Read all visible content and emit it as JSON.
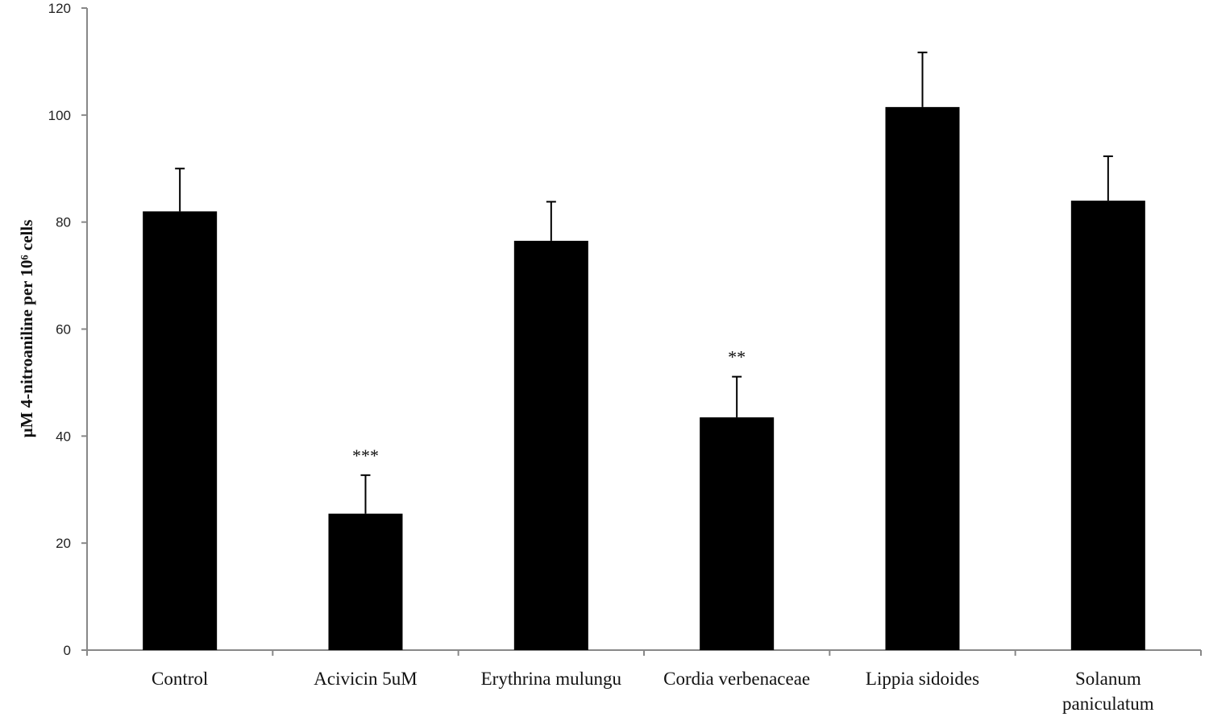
{
  "chart_data": {
    "type": "bar",
    "categories": [
      [
        "Control"
      ],
      [
        "Acivicin  5uM"
      ],
      [
        "Erythrina mulungu"
      ],
      [
        "Cordia verbenaceae"
      ],
      [
        "Lippia sidoides"
      ],
      [
        "Solanum",
        "paniculatum"
      ]
    ],
    "values": [
      82,
      25.5,
      76.5,
      43.5,
      101.5,
      84
    ],
    "errors": [
      8,
      7.2,
      7.3,
      7.6,
      10.2,
      8.3
    ],
    "significance": [
      "",
      "***",
      "",
      "**",
      "",
      ""
    ],
    "ylim": [
      0,
      120
    ],
    "yticks": [
      0,
      20,
      40,
      60,
      80,
      100,
      120
    ],
    "ylabel": "µM 4-nitroaniline per 10⁶ cells",
    "xlabel": "",
    "title": "",
    "grid": false,
    "bar_color": "#000000",
    "axis_color": "#888888"
  }
}
